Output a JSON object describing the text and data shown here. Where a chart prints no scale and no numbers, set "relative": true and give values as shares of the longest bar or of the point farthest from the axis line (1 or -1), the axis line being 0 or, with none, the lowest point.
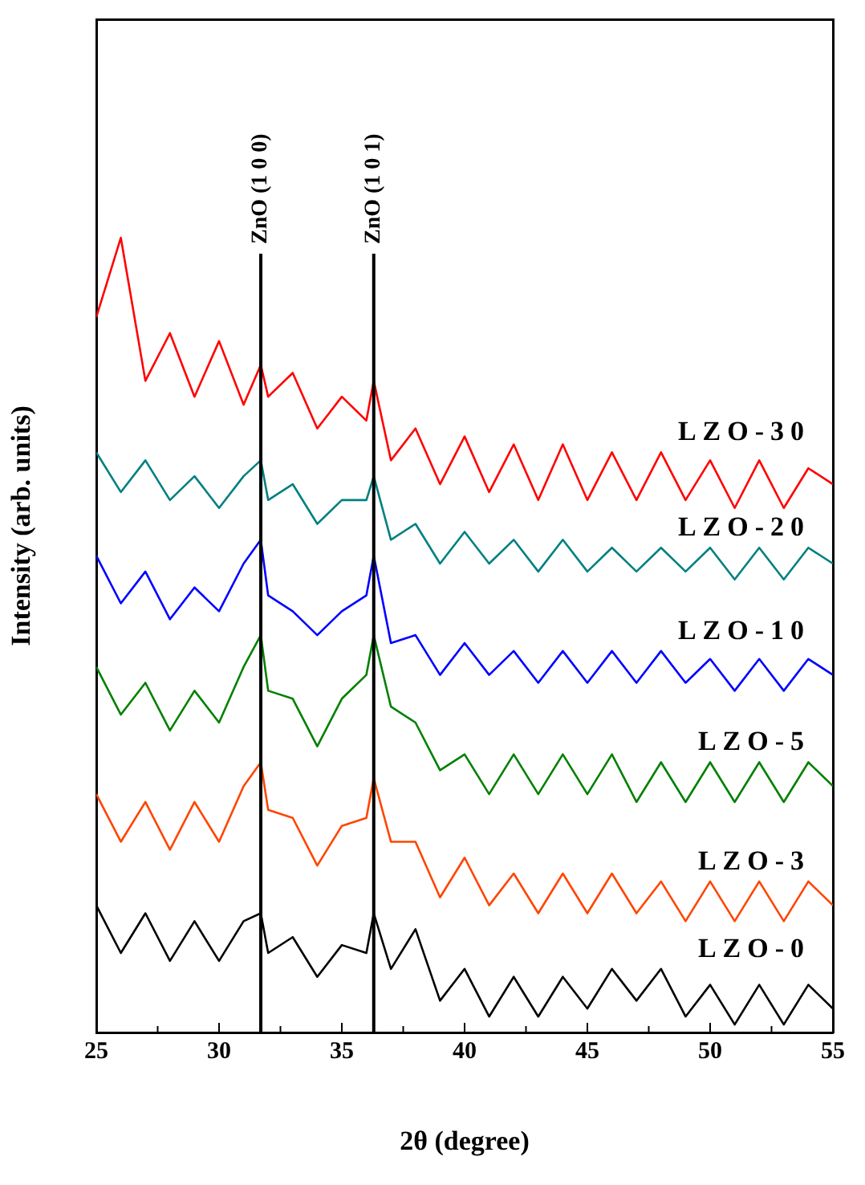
{
  "chart_data": {
    "type": "line",
    "relative": true,
    "xlabel": "2θ (degree)",
    "ylabel": "Intensity (arb. units)",
    "xlim": [
      25,
      55
    ],
    "xticks": [
      25,
      {
        "value": 27.5,
        "label": null
      },
      30,
      {
        "value": 32.5,
        "label": null
      },
      35,
      {
        "value": 37.5,
        "label": null
      },
      40,
      {
        "value": 42.5,
        "label": null
      },
      45,
      {
        "value": 47.5,
        "label": null
      },
      50,
      {
        "value": 52.5,
        "label": null
      },
      55
    ],
    "x": [
      25,
      26,
      27,
      28,
      29,
      30,
      31,
      31.7,
      32,
      33,
      34,
      35,
      36,
      36.3,
      37,
      38,
      39,
      40,
      41,
      42,
      43,
      44,
      45,
      46,
      47,
      48,
      49,
      50,
      51,
      52,
      53,
      54,
      55
    ],
    "marker": "none",
    "line_style": "solid",
    "legend": false,
    "series": [
      {
        "name": "LZO-30",
        "color": "#ff0000",
        "values": [
          0.9,
          1.0,
          0.82,
          0.88,
          0.8,
          0.87,
          0.79,
          0.84,
          0.8,
          0.83,
          0.76,
          0.8,
          0.77,
          0.82,
          0.72,
          0.76,
          0.69,
          0.75,
          0.68,
          0.74,
          0.67,
          0.74,
          0.67,
          0.73,
          0.67,
          0.73,
          0.67,
          0.72,
          0.66,
          0.72,
          0.66,
          0.71,
          0.69
        ]
      },
      {
        "name": "LZO-20",
        "color": "#008080",
        "values": [
          0.73,
          0.68,
          0.72,
          0.67,
          0.7,
          0.66,
          0.7,
          0.72,
          0.67,
          0.69,
          0.64,
          0.67,
          0.67,
          0.7,
          0.62,
          0.64,
          0.59,
          0.63,
          0.59,
          0.62,
          0.58,
          0.62,
          0.58,
          0.61,
          0.58,
          0.61,
          0.58,
          0.61,
          0.57,
          0.61,
          0.57,
          0.61,
          0.59
        ]
      },
      {
        "name": "LZO-10",
        "color": "#0000ff",
        "values": [
          0.6,
          0.54,
          0.58,
          0.52,
          0.56,
          0.53,
          0.59,
          0.62,
          0.55,
          0.53,
          0.5,
          0.53,
          0.55,
          0.6,
          0.49,
          0.5,
          0.45,
          0.49,
          0.45,
          0.48,
          0.44,
          0.48,
          0.44,
          0.48,
          0.44,
          0.48,
          0.44,
          0.47,
          0.43,
          0.47,
          0.43,
          0.47,
          0.45
        ]
      },
      {
        "name": "LZO-5",
        "color": "#008000",
        "values": [
          0.46,
          0.4,
          0.44,
          0.38,
          0.43,
          0.39,
          0.46,
          0.5,
          0.43,
          0.42,
          0.36,
          0.42,
          0.45,
          0.5,
          0.41,
          0.39,
          0.33,
          0.35,
          0.3,
          0.35,
          0.3,
          0.35,
          0.3,
          0.35,
          0.29,
          0.34,
          0.29,
          0.34,
          0.29,
          0.34,
          0.29,
          0.34,
          0.31
        ]
      },
      {
        "name": "LZO-3",
        "color": "#ff4500",
        "values": [
          0.3,
          0.24,
          0.29,
          0.23,
          0.29,
          0.24,
          0.31,
          0.34,
          0.28,
          0.27,
          0.21,
          0.26,
          0.27,
          0.32,
          0.24,
          0.24,
          0.17,
          0.22,
          0.16,
          0.2,
          0.15,
          0.2,
          0.15,
          0.2,
          0.15,
          0.19,
          0.14,
          0.19,
          0.14,
          0.19,
          0.14,
          0.19,
          0.16
        ]
      },
      {
        "name": "LZO-0",
        "color": "#000000",
        "values": [
          0.16,
          0.1,
          0.15,
          0.09,
          0.14,
          0.09,
          0.14,
          0.15,
          0.1,
          0.12,
          0.07,
          0.11,
          0.1,
          0.15,
          0.08,
          0.13,
          0.04,
          0.08,
          0.02,
          0.07,
          0.02,
          0.07,
          0.03,
          0.08,
          0.04,
          0.08,
          0.02,
          0.06,
          0.01,
          0.06,
          0.01,
          0.06,
          0.03
        ]
      }
    ],
    "ref_lines": [
      {
        "axis": "x",
        "value": 31.7,
        "label": "ZnO (1 0 0)",
        "color": "#000000"
      },
      {
        "axis": "x",
        "value": 36.3,
        "label": "ZnO (1 0 1)",
        "color": "#000000"
      }
    ]
  }
}
